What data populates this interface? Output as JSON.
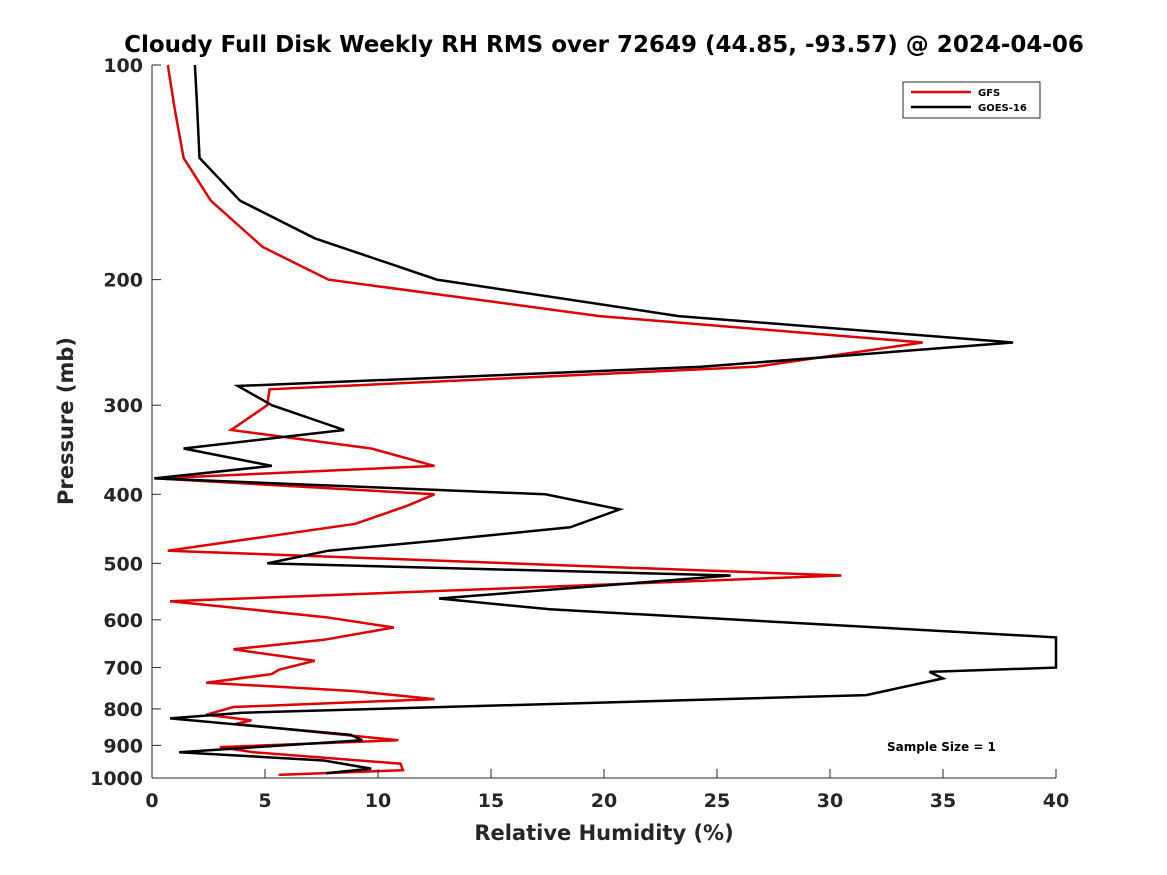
{
  "chart_data": {
    "type": "line",
    "title": "Cloudy Full Disk Weekly RH RMS over 72649 (44.85, -93.57) @ 2024-04-06",
    "xlabel": "Relative Humidity (%)",
    "ylabel": "Pressure (mb)",
    "xlim": [
      0,
      40
    ],
    "ylim": [
      100,
      1000
    ],
    "y_scale": "log",
    "y_reversed": true,
    "xticks": [
      0,
      5,
      10,
      15,
      20,
      25,
      30,
      35,
      40
    ],
    "yticks": [
      100,
      200,
      300,
      400,
      500,
      600,
      700,
      800,
      900,
      1000
    ],
    "grid": false,
    "legend_position": "top-right",
    "annotation": "Sample Size = 1",
    "series": [
      {
        "name": "GFS",
        "color": "#e00000",
        "x": [
          0.7,
          1.0,
          1.4,
          2.6,
          4.9,
          7.8,
          19.8,
          34.1,
          26.7,
          5.2,
          5.1,
          3.5,
          9.7,
          12.5,
          0.2,
          12.5,
          11.3,
          9.0,
          0.7,
          30.5,
          0.8,
          7.7,
          10.7,
          7.6,
          3.6,
          7.2,
          5.6,
          5.3,
          2.4,
          8.9,
          12.5,
          3.6,
          2.4,
          4.4,
          3.7,
          10.9,
          3.0,
          4.5,
          11.0,
          11.1,
          5.6
        ],
        "y": [
          100,
          115,
          135,
          155,
          180,
          200,
          225,
          245,
          265,
          285,
          300,
          325,
          345,
          365,
          380,
          400,
          415,
          440,
          480,
          520,
          565,
          595,
          615,
          640,
          660,
          685,
          705,
          715,
          735,
          755,
          775,
          795,
          815,
          830,
          840,
          885,
          905,
          920,
          955,
          975,
          990
        ]
      },
      {
        "name": "GOES-16",
        "color": "#000000",
        "x": [
          1.9,
          2.0,
          2.1,
          3.9,
          7.2,
          12.6,
          23.3,
          38.1,
          24.3,
          3.8,
          5.3,
          8.5,
          1.4,
          5.3,
          0.1,
          17.4,
          20.7,
          18.5,
          12.5,
          7.8,
          5.1,
          25.6,
          12.7,
          17.6,
          40.0,
          40.0,
          34.4,
          35.0,
          31.6,
          4.0,
          0.8,
          8.8,
          9.3,
          1.2,
          7.6,
          9.7,
          7.7
        ],
        "y": [
          100,
          115,
          135,
          155,
          175,
          200,
          225,
          245,
          265,
          282,
          300,
          325,
          345,
          365,
          380,
          400,
          420,
          445,
          465,
          480,
          500,
          520,
          560,
          580,
          635,
          700,
          710,
          725,
          765,
          810,
          825,
          870,
          885,
          920,
          945,
          970,
          985
        ]
      }
    ]
  }
}
